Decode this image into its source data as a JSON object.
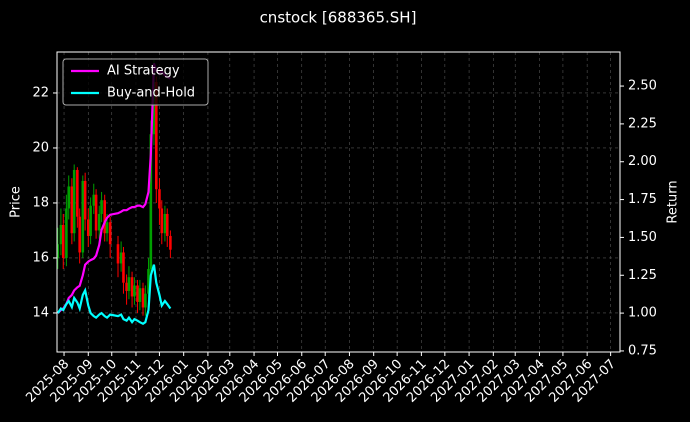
{
  "chart_data": {
    "type": "candlestick",
    "title": "cnstock [688365.SH]",
    "ylabel": "Price",
    "y2label": "Return",
    "x": [
      "2025-07-24",
      "2025-07-28",
      "2025-07-31",
      "2025-08-04",
      "2025-08-07",
      "2025-08-11",
      "2025-08-14",
      "2025-08-18",
      "2025-08-21",
      "2025-08-25",
      "2025-08-28",
      "2025-09-01",
      "2025-09-04",
      "2025-09-08",
      "2025-09-11",
      "2025-09-15",
      "2025-09-18",
      "2025-09-22",
      "2025-09-25",
      "2025-09-29",
      "2025-10-09",
      "2025-10-13",
      "2025-10-16",
      "2025-10-20",
      "2025-10-23",
      "2025-10-27",
      "2025-10-30",
      "2025-11-03",
      "2025-11-06",
      "2025-11-10",
      "2025-11-13",
      "2025-11-17",
      "2025-11-20",
      "2025-11-24",
      "2025-11-27",
      "2025-12-01",
      "2025-12-04",
      "2025-12-08",
      "2025-12-11",
      "2025-12-15"
    ],
    "open": [
      16.0,
      16.5,
      17.2,
      16.0,
      17.8,
      18.6,
      16.9,
      19.2,
      17.5,
      16.2,
      18.8,
      17.4,
      16.8,
      17.9,
      18.3,
      17.0,
      17.6,
      18.1,
      16.9,
      17.3,
      16.5,
      15.8,
      16.2,
      15.1,
      14.8,
      15.3,
      14.6,
      15.0,
      14.4,
      14.9,
      14.2,
      14.7,
      15.6,
      20.5,
      22.4,
      18.5,
      17.8,
      16.9,
      17.6,
      16.8
    ],
    "high": [
      17.1,
      17.8,
      17.6,
      18.3,
      19.0,
      18.9,
      19.4,
      19.3,
      17.8,
      19.0,
      19.1,
      17.8,
      18.2,
      18.7,
      18.5,
      17.9,
      18.4,
      18.3,
      17.6,
      17.5,
      16.8,
      16.6,
      16.4,
      15.4,
      15.7,
      15.5,
      15.3,
      15.2,
      15.2,
      15.1,
      15.0,
      16.0,
      21.0,
      23.2,
      22.6,
      18.9,
      18.1,
      17.9,
      17.8,
      17.0
    ],
    "low": [
      15.6,
      16.1,
      15.6,
      15.7,
      17.4,
      16.5,
      16.6,
      17.1,
      15.8,
      16.0,
      17.0,
      16.4,
      16.5,
      17.6,
      16.7,
      16.7,
      17.3,
      16.6,
      16.6,
      16.0,
      15.3,
      15.5,
      14.7,
      14.3,
      14.5,
      14.2,
      14.3,
      14.0,
      14.1,
      13.9,
      13.9,
      14.5,
      15.4,
      20.1,
      18.0,
      17.2,
      16.5,
      16.6,
      16.4,
      16.0
    ],
    "close": [
      16.5,
      17.2,
      16.0,
      17.8,
      18.6,
      16.9,
      19.2,
      17.5,
      16.2,
      18.8,
      17.4,
      16.8,
      17.9,
      18.3,
      17.0,
      17.6,
      18.1,
      16.9,
      17.3,
      16.5,
      15.8,
      16.2,
      15.1,
      14.8,
      15.3,
      14.6,
      15.0,
      14.4,
      14.9,
      14.2,
      14.7,
      15.6,
      20.5,
      22.4,
      18.5,
      17.8,
      16.9,
      17.6,
      16.8,
      16.3
    ],
    "up_color": "#00a000",
    "down_color": "#ff0000",
    "series": [
      {
        "name": "AI Strategy",
        "color": "#ff00ff",
        "axis": "y2",
        "values": [
          1.0,
          1.02,
          1.03,
          1.06,
          1.1,
          1.12,
          1.15,
          1.17,
          1.18,
          1.25,
          1.32,
          1.34,
          1.35,
          1.36,
          1.38,
          1.45,
          1.55,
          1.6,
          1.63,
          1.65,
          1.66,
          1.67,
          1.68,
          1.68,
          1.69,
          1.7,
          1.7,
          1.71,
          1.71,
          1.7,
          1.72,
          1.8,
          2.05,
          2.65,
          2.6,
          2.58,
          2.6,
          2.57,
          2.56,
          2.55
        ]
      },
      {
        "name": "Buy-and-Hold",
        "color": "#00ffff",
        "axis": "y2",
        "values": [
          1.0,
          1.03,
          1.02,
          1.06,
          1.08,
          1.04,
          1.1,
          1.07,
          1.03,
          1.12,
          1.15,
          1.05,
          1.0,
          0.98,
          0.97,
          0.99,
          1.0,
          0.98,
          0.97,
          0.99,
          0.98,
          0.99,
          0.96,
          0.95,
          0.97,
          0.94,
          0.96,
          0.95,
          0.94,
          0.93,
          0.94,
          1.02,
          1.25,
          1.32,
          1.2,
          1.12,
          1.05,
          1.08,
          1.06,
          1.03
        ]
      }
    ],
    "xlim": [
      "2025-07-23",
      "2027-07-13"
    ],
    "xticks": [
      "2025-08",
      "2025-09",
      "2025-10",
      "2025-11",
      "2025-12",
      "2026-01",
      "2026-02",
      "2026-03",
      "2026-04",
      "2026-05",
      "2026-06",
      "2026-07",
      "2026-08",
      "2026-09",
      "2026-10",
      "2026-11",
      "2026-12",
      "2027-01",
      "2027-02",
      "2027-03",
      "2027-04",
      "2027-05",
      "2027-06",
      "2027-07"
    ],
    "ylim": [
      12.58,
      23.49
    ],
    "yticks": [
      14,
      16,
      18,
      20,
      22
    ],
    "y2lim": [
      0.743,
      2.725
    ],
    "y2ticks": [
      0.75,
      {
        "value": 1.0,
        "label": "1.00"
      },
      1.25,
      {
        "value": 1.5,
        "label": "1.50"
      },
      1.75,
      {
        "value": 2.0,
        "label": "2.00"
      },
      2.25,
      {
        "value": 2.5,
        "label": "2.50"
      }
    ],
    "grid": true,
    "legend": "upper left"
  }
}
